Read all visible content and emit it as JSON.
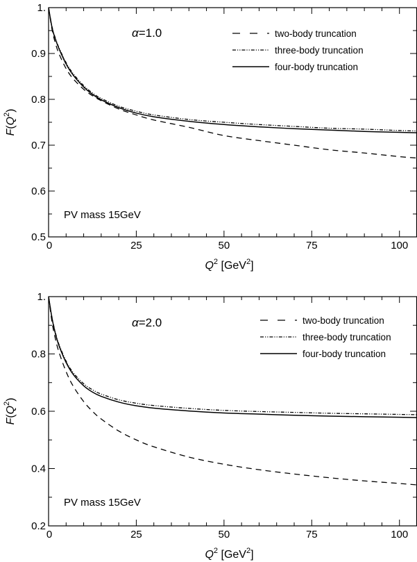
{
  "chart_data": [
    {
      "type": "line",
      "xlim": [
        0,
        105
      ],
      "ylim": [
        0.5,
        1.0
      ],
      "x_ticks": [
        0,
        25,
        50,
        75,
        100
      ],
      "x_tick_labels": [
        "0",
        "25",
        "50",
        "75",
        "100"
      ],
      "y_ticks": [
        0.5,
        0.6,
        0.7,
        0.8,
        0.9,
        1.0
      ],
      "y_tick_labels": [
        "0.5",
        "0.6",
        "0.7",
        "0.8",
        "0.9",
        "1."
      ],
      "xlabel": {
        "var": "Q",
        "exp": "2",
        "unit_pre": " [GeV",
        "unit_exp": "2",
        "unit_post": "]"
      },
      "ylabel": {
        "pre": "F(Q",
        "exp": "2",
        "post": ")"
      },
      "alpha_label": {
        "symbol": "α",
        "value": "=1.0"
      },
      "annotation": "PV mass 15GeV",
      "grid": false,
      "legend_position": "top-right",
      "series": [
        {
          "name": "two-body truncation",
          "style": "dashed",
          "x": [
            0,
            1,
            2,
            3,
            5,
            7,
            10,
            12.5,
            15,
            20,
            25,
            30,
            40,
            50,
            60,
            70,
            80,
            90,
            100,
            105
          ],
          "values": [
            1.0,
            0.952,
            0.921,
            0.899,
            0.867,
            0.845,
            0.822,
            0.808,
            0.797,
            0.779,
            0.766,
            0.755,
            0.739,
            0.721,
            0.71,
            0.7,
            0.69,
            0.683,
            0.675,
            0.672
          ]
        },
        {
          "name": "three-body truncation",
          "style": "dashdotdot",
          "x": [
            0,
            1,
            2,
            3,
            5,
            7,
            10,
            12.5,
            15,
            20,
            25,
            30,
            40,
            50,
            60,
            70,
            80,
            90,
            100,
            105
          ],
          "values": [
            1.0,
            0.958,
            0.932,
            0.912,
            0.88,
            0.856,
            0.83,
            0.814,
            0.802,
            0.785,
            0.774,
            0.766,
            0.756,
            0.75,
            0.745,
            0.741,
            0.737,
            0.735,
            0.732,
            0.731
          ]
        },
        {
          "name": "four-body truncation",
          "style": "solid",
          "x": [
            0,
            1,
            2,
            3,
            5,
            7,
            10,
            12.5,
            15,
            20,
            25,
            30,
            40,
            50,
            60,
            70,
            80,
            90,
            100,
            105
          ],
          "values": [
            1.0,
            0.956,
            0.93,
            0.91,
            0.877,
            0.853,
            0.827,
            0.811,
            0.799,
            0.782,
            0.77,
            0.762,
            0.752,
            0.745,
            0.74,
            0.736,
            0.733,
            0.73,
            0.728,
            0.727
          ]
        }
      ]
    },
    {
      "type": "line",
      "xlim": [
        0,
        105
      ],
      "ylim": [
        0.2,
        1.0
      ],
      "x_ticks": [
        0,
        25,
        50,
        75,
        100
      ],
      "x_tick_labels": [
        "0",
        "25",
        "50",
        "75",
        "100"
      ],
      "y_ticks": [
        0.2,
        0.4,
        0.6,
        0.8,
        1.0
      ],
      "y_tick_labels": [
        "0.2",
        "0.4",
        "0.6",
        "0.8",
        "1."
      ],
      "xlabel": {
        "var": "Q",
        "exp": "2",
        "unit_pre": " [GeV",
        "unit_exp": "2",
        "unit_post": "]"
      },
      "ylabel": {
        "pre": "F(Q",
        "exp": "2",
        "post": ")"
      },
      "alpha_label": {
        "symbol": "α",
        "value": "=2.0"
      },
      "annotation": "PV mass 15GeV",
      "grid": false,
      "legend_position": "top-right",
      "series": [
        {
          "name": "two-body truncation",
          "style": "dashed",
          "x": [
            0,
            1,
            2,
            3,
            5,
            7,
            10,
            12.5,
            15,
            20,
            25,
            30,
            40,
            50,
            60,
            70,
            80,
            90,
            100,
            105
          ],
          "values": [
            1.0,
            0.91,
            0.85,
            0.805,
            0.738,
            0.688,
            0.634,
            0.6,
            0.573,
            0.531,
            0.5,
            0.476,
            0.44,
            0.415,
            0.396,
            0.381,
            0.368,
            0.357,
            0.348,
            0.343
          ]
        },
        {
          "name": "three-body truncation",
          "style": "dashdotdot",
          "x": [
            0,
            1,
            2,
            3,
            5,
            7,
            10,
            12.5,
            15,
            20,
            25,
            30,
            40,
            50,
            60,
            70,
            80,
            90,
            100,
            105
          ],
          "values": [
            1.0,
            0.926,
            0.872,
            0.832,
            0.775,
            0.735,
            0.696,
            0.675,
            0.66,
            0.64,
            0.628,
            0.62,
            0.61,
            0.603,
            0.599,
            0.596,
            0.593,
            0.591,
            0.589,
            0.588
          ]
        },
        {
          "name": "four-body truncation",
          "style": "solid",
          "x": [
            0,
            1,
            2,
            3,
            5,
            7,
            10,
            12.5,
            15,
            20,
            25,
            30,
            40,
            50,
            60,
            70,
            80,
            90,
            100,
            105
          ],
          "values": [
            1.0,
            0.923,
            0.868,
            0.828,
            0.77,
            0.729,
            0.689,
            0.667,
            0.652,
            0.632,
            0.619,
            0.611,
            0.601,
            0.594,
            0.59,
            0.586,
            0.583,
            0.581,
            0.579,
            0.578
          ]
        }
      ]
    }
  ]
}
